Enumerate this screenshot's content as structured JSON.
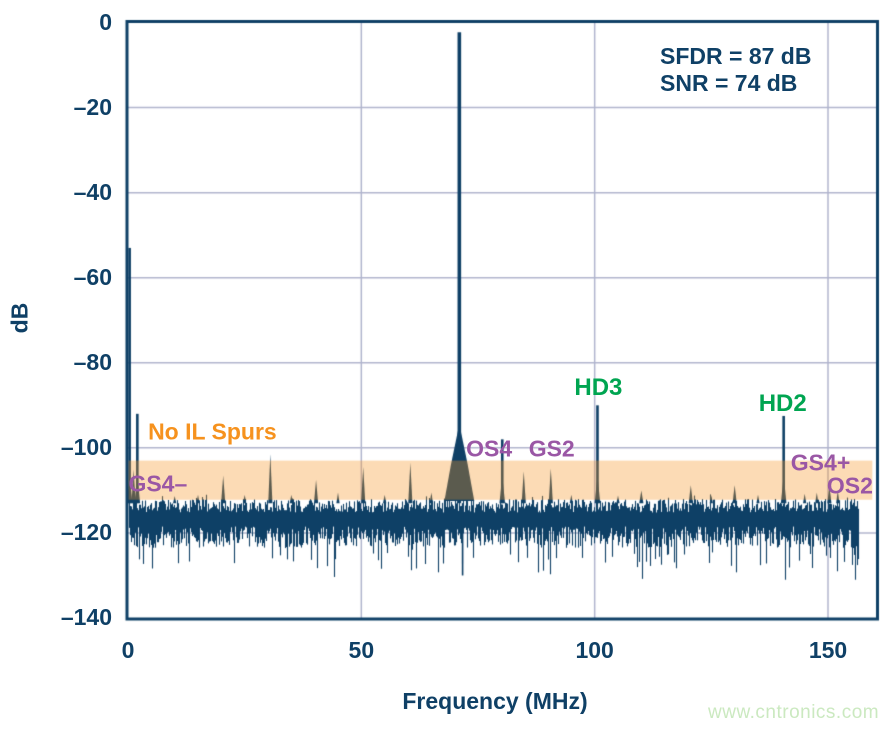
{
  "chart_data": {
    "type": "line",
    "title": "",
    "xlabel": "Frequency (MHz)",
    "ylabel": "dB",
    "xlim": [
      0,
      160.7
    ],
    "ylim": [
      -140,
      0
    ],
    "grid": true,
    "x_ticks": [
      {
        "label": "0",
        "mhz": 0
      },
      {
        "label": "50",
        "mhz": 50
      },
      {
        "label": "100",
        "mhz": 100
      },
      {
        "label": "150",
        "mhz": 150
      }
    ],
    "y_ticks": [
      {
        "label": "0",
        "db": 0
      },
      {
        "label": "–20",
        "db": -20
      },
      {
        "label": "–40",
        "db": -40
      },
      {
        "label": "–60",
        "db": -60
      },
      {
        "label": "–80",
        "db": -80
      },
      {
        "label": "–100",
        "db": -100
      },
      {
        "label": "–120",
        "db": -120
      },
      {
        "label": "–140",
        "db": -140
      }
    ],
    "stats_box": {
      "lines": [
        "SFDR = 87 dB",
        "SNR = 74 dB"
      ]
    },
    "fundamental": {
      "mhz": 71,
      "db": -2.3
    },
    "noise": {
      "floor_top_db": -112.4,
      "floor_bottom_db": -120.5,
      "deep_tip_db": -129.5,
      "start_mhz": 0.2,
      "end_mhz": 156.4,
      "seed": 7
    },
    "spurs": [
      {
        "mhz": 0.35,
        "db": -53,
        "type": "line"
      },
      {
        "mhz": 1.2,
        "db": -105,
        "type": "tri"
      },
      {
        "mhz": 2.0,
        "db": -92,
        "type": "line"
      },
      {
        "mhz": 10.0,
        "db": -111.3,
        "type": "tri_s"
      },
      {
        "mhz": 15.0,
        "db": -111.0,
        "type": "tri_s"
      },
      {
        "mhz": 20.4,
        "db": -106.5,
        "type": "tri"
      },
      {
        "mhz": 25.0,
        "db": -111.0,
        "type": "tri_s"
      },
      {
        "mhz": 30.5,
        "db": -101.5,
        "type": "tri"
      },
      {
        "mhz": 35.0,
        "db": -111.0,
        "type": "tri_s"
      },
      {
        "mhz": 40.3,
        "db": -107.5,
        "type": "tri"
      },
      {
        "mhz": 45.0,
        "db": -110.5,
        "type": "tri_s"
      },
      {
        "mhz": 50.4,
        "db": -104.5,
        "type": "tri"
      },
      {
        "mhz": 55.0,
        "db": -111.0,
        "type": "tri_s"
      },
      {
        "mhz": 60.5,
        "db": -103.5,
        "type": "tri"
      },
      {
        "mhz": 65.0,
        "db": -110.5,
        "type": "tri_s"
      },
      {
        "mhz": 80.2,
        "db": -98,
        "type": "line"
      },
      {
        "mhz": 84.8,
        "db": -105.5,
        "type": "tri"
      },
      {
        "mhz": 90.6,
        "db": -104.8,
        "type": "tri"
      },
      {
        "mhz": 95.0,
        "db": -111.0,
        "type": "tri_s"
      },
      {
        "mhz": 100.6,
        "db": -90,
        "type": "line"
      },
      {
        "mhz": 105.0,
        "db": -111.2,
        "type": "tri_s"
      },
      {
        "mhz": 110.0,
        "db": -110.0,
        "type": "tri"
      },
      {
        "mhz": 120.6,
        "db": -108.8,
        "type": "tri"
      },
      {
        "mhz": 125.0,
        "db": -111.2,
        "type": "tri_s"
      },
      {
        "mhz": 130.0,
        "db": -108.8,
        "type": "tri"
      },
      {
        "mhz": 135.0,
        "db": -111.0,
        "type": "tri_s"
      },
      {
        "mhz": 140.5,
        "db": -92.5,
        "type": "line"
      },
      {
        "mhz": 145.0,
        "db": -110.8,
        "type": "tri_s"
      },
      {
        "mhz": 147.6,
        "db": -110.5,
        "type": "tri_s"
      },
      {
        "mhz": 150.3,
        "db": -109.0,
        "type": "tri"
      },
      {
        "mhz": 152.1,
        "db": -110.0,
        "type": "tri_s"
      }
    ],
    "highlight_band": {
      "db_top": -103,
      "db_bottom": -112.2,
      "mhz_start": 0,
      "mhz_end": 159.5,
      "color": "rgba(246,146,30,0.33)"
    },
    "annotations": [
      {
        "text": "No IL Spurs",
        "mhz": 4.3,
        "db": -96.3,
        "color": "#f6921e",
        "anchor": "left",
        "size": "norm"
      },
      {
        "text": "GS4–",
        "mhz": 0.1,
        "db": -108.4,
        "color": "#9a57a5",
        "anchor": "left",
        "size": "norm"
      },
      {
        "text": "OS4",
        "mhz": 77.4,
        "db": -100.2,
        "color": "#9a57a5",
        "anchor": "center",
        "size": "norm"
      },
      {
        "text": "GS2",
        "mhz": 90.8,
        "db": -100.2,
        "color": "#9a57a5",
        "anchor": "center",
        "size": "norm"
      },
      {
        "text": "HD3",
        "mhz": 100.8,
        "db": -86.0,
        "color": "#00a551",
        "anchor": "center",
        "size": "big"
      },
      {
        "text": "HD2",
        "mhz": 140.3,
        "db": -89.6,
        "color": "#00a551",
        "anchor": "center",
        "size": "big"
      },
      {
        "text": "GS4+",
        "mhz": 148.4,
        "db": -103.5,
        "color": "#9a57a5",
        "anchor": "center",
        "size": "norm"
      },
      {
        "text": "OS2",
        "mhz": 154.7,
        "db": -109.0,
        "color": "#9a57a5",
        "anchor": "center",
        "size": "norm"
      }
    ],
    "colors": {
      "trace": "#0f4066",
      "axis": "#0f4066",
      "grid": "#b0b4cd",
      "background": "#ffffff"
    }
  },
  "watermark": {
    "text": "www.cntronics.com",
    "color": "#cbe9c0"
  }
}
